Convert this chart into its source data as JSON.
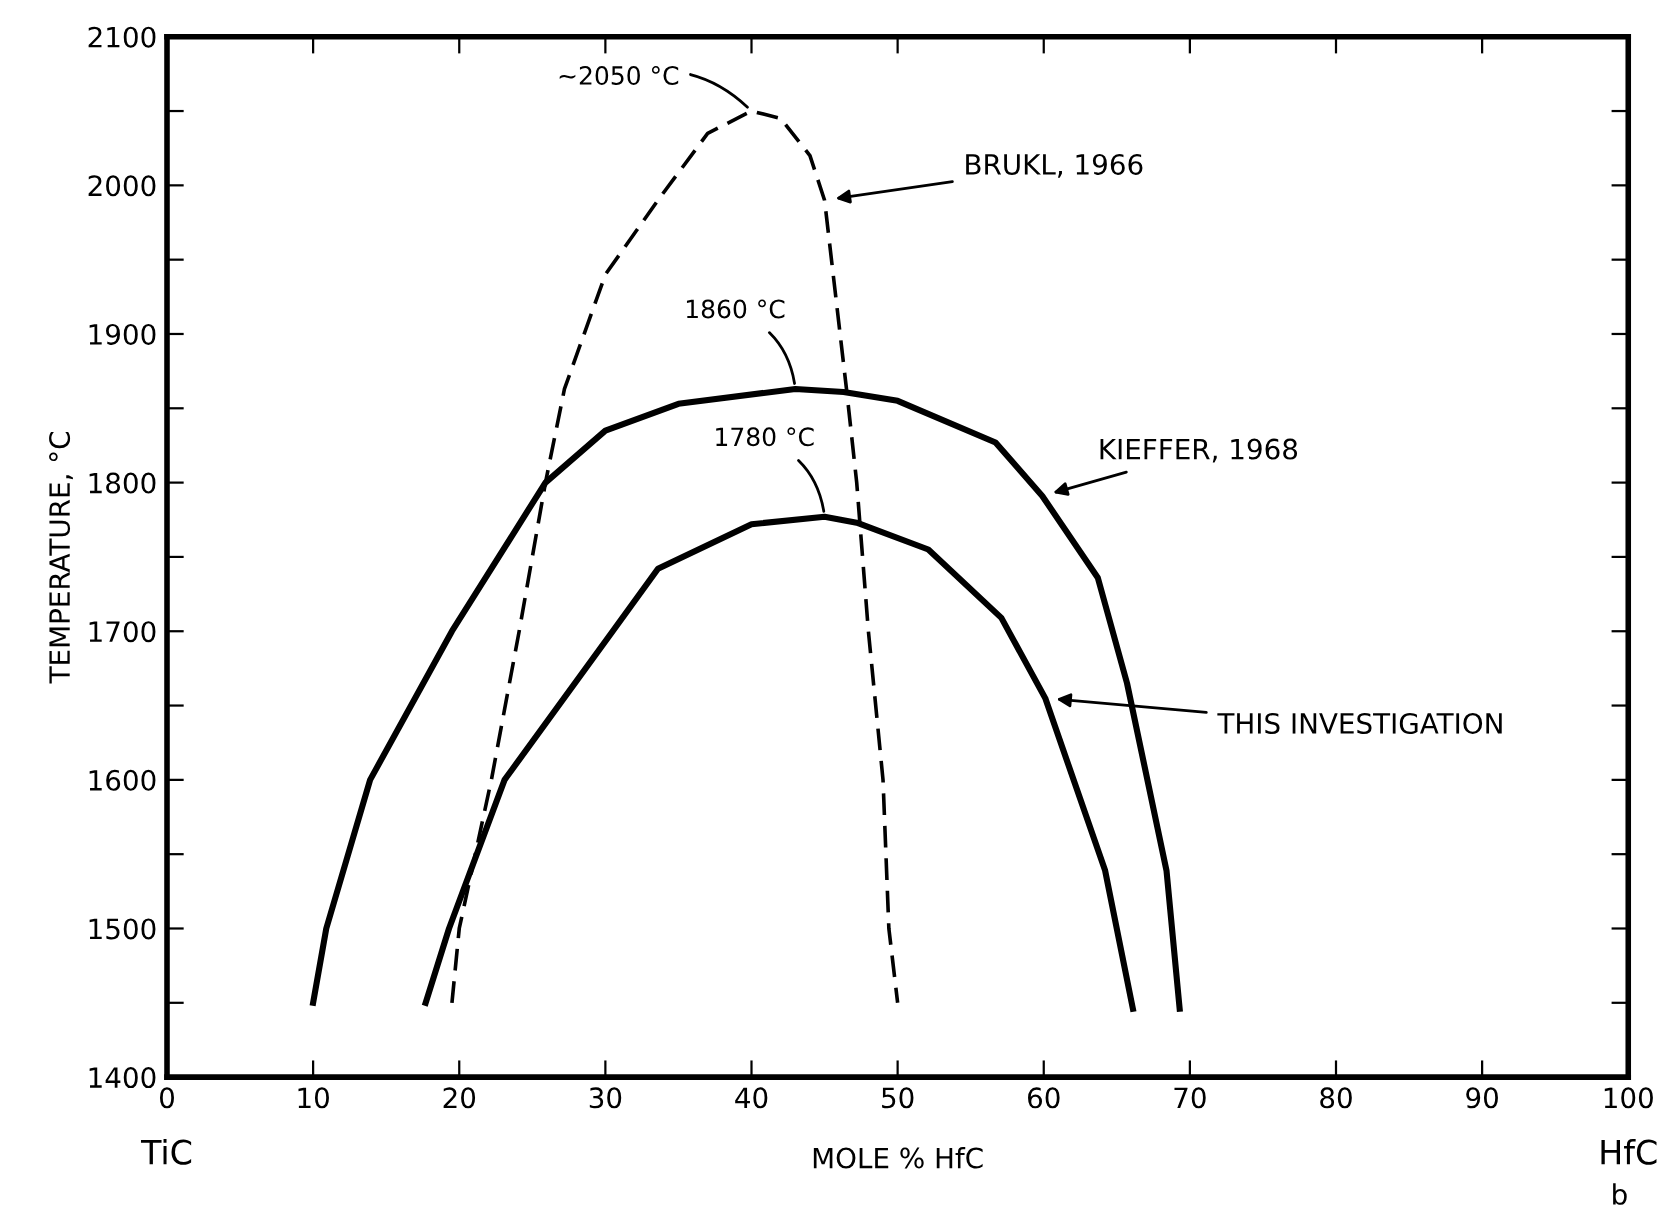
{
  "chart_data": {
    "type": "line",
    "xlabel": "MOLE % HfC",
    "ylabel": "TEMPERATURE, °C",
    "xlim": [
      0,
      100
    ],
    "ylim": [
      1400,
      2100
    ],
    "xticks": [
      0,
      10,
      20,
      30,
      40,
      50,
      60,
      70,
      80,
      90,
      100
    ],
    "yticks": [
      1400,
      {
        "value": 1450,
        "label": null
      },
      1500,
      {
        "value": 1550,
        "label": null
      },
      1600,
      {
        "value": 1650,
        "label": null
      },
      1700,
      {
        "value": 1750,
        "label": null
      },
      1800,
      {
        "value": 1850,
        "label": null
      },
      1900,
      {
        "value": 1950,
        "label": null
      },
      2000,
      {
        "value": 2050,
        "label": null
      },
      2100
    ],
    "grid": false,
    "marker": "none",
    "series": [
      {
        "name": "BRUKL, 1966",
        "color": "#000000",
        "line_style": "dashed",
        "x": [
          19.5,
          20,
          22.2,
          24.1,
          25.9,
          27.2,
          30,
          33.6,
          37,
          40,
          42,
          44,
          45,
          46.5,
          47.2,
          48,
          49,
          49.4,
          50
        ],
        "values": [
          1450,
          1500,
          1600,
          1700,
          1800,
          1863,
          1940,
          1990,
          2035,
          2050,
          2045,
          2020,
          1990,
          1863,
          1800,
          1700,
          1600,
          1500,
          1450
        ]
      },
      {
        "name": "KIEFFER, 1968",
        "color": "#000000",
        "line_style": "solid",
        "x": [
          10,
          10.9,
          13.9,
          19.5,
          25.9,
          30,
          35,
          43,
          46.3,
          50,
          56.7,
          59.9,
          63.7,
          65.7,
          68.4,
          69.3
        ],
        "values": [
          1450,
          1500,
          1600,
          1700,
          1800,
          1835,
          1853,
          1863,
          1861,
          1855,
          1827,
          1791,
          1736,
          1665,
          1539,
          1446
        ]
      },
      {
        "name": "THIS INVESTIGATION",
        "color": "#000000",
        "line_style": "solid",
        "x": [
          17.7,
          19.3,
          23.1,
          30.5,
          33.6,
          40,
          45,
          47.2,
          52.1,
          57.1,
          60.1,
          64.2,
          66.1
        ],
        "values": [
          1450,
          1500,
          1600,
          1700,
          1742,
          1772,
          1777,
          1773,
          1755,
          1709,
          1655,
          1539,
          1446
        ]
      }
    ],
    "annotations": [
      {
        "text": "~2050 °C",
        "x": 40,
        "y": 2050
      },
      {
        "text": "1860 °C",
        "x": 43,
        "y": 1863
      },
      {
        "text": "1780 °C",
        "x": 45,
        "y": 1777
      },
      "TiC",
      "HfC",
      "b"
    ]
  }
}
